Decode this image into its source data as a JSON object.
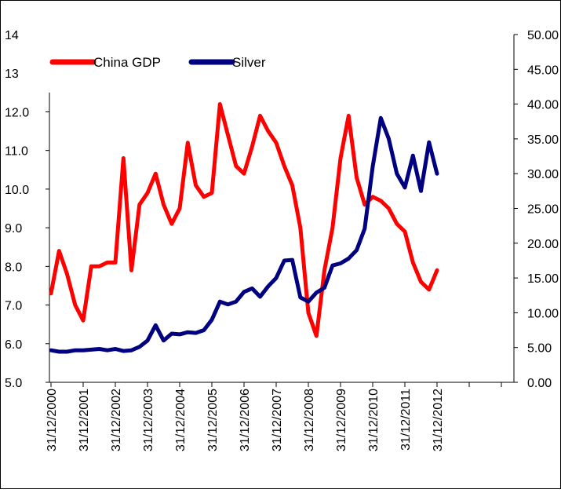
{
  "chart_data": {
    "type": "line",
    "title": "",
    "xlabel": "",
    "categories": [
      "31/12/2000",
      "31/12/2001",
      "31/12/2002",
      "31/12/2003",
      "31/12/2004",
      "31/12/2005",
      "31/12/2006",
      "31/12/2007",
      "31/12/2008",
      "31/12/2009",
      "31/12/2010",
      "31/12/2011",
      "31/12/2012"
    ],
    "y_left": {
      "ticks": [
        "5.0",
        "6.0",
        "7.0",
        "8.0",
        "9.0",
        "10.0",
        "11.0",
        "12.0",
        "13",
        "14"
      ],
      "ylim": [
        5,
        14
      ]
    },
    "y_right": {
      "ticks": [
        "0.00",
        "5.00",
        "10.00",
        "15.00",
        "20.00",
        "25.00",
        "30.00",
        "35.00",
        "40.00",
        "45.00",
        "50.00"
      ],
      "ylim": [
        0,
        50
      ]
    },
    "legend": {
      "placement": "top-left",
      "entries": [
        {
          "label": "China GDP",
          "color": "#ff0000"
        },
        {
          "label": "Silver",
          "color": "#000080"
        }
      ]
    },
    "series": [
      {
        "name": "China GDP",
        "axis": "left",
        "color": "#ff0000",
        "x": [
          2000.0,
          2000.25,
          2000.5,
          2000.75,
          2001.0,
          2001.25,
          2001.5,
          2001.75,
          2002.0,
          2002.25,
          2002.5,
          2002.75,
          2003.0,
          2003.25,
          2003.5,
          2003.75,
          2004.0,
          2004.25,
          2004.5,
          2004.75,
          2005.0,
          2005.25,
          2005.5,
          2005.75,
          2006.0,
          2006.25,
          2006.5,
          2006.75,
          2007.0,
          2007.25,
          2007.5,
          2007.75,
          2008.0,
          2008.25,
          2008.5,
          2008.75,
          2009.0,
          2009.25,
          2009.5,
          2009.75,
          2010.0,
          2010.25,
          2010.5,
          2010.75,
          2011.0,
          2011.25,
          2011.5,
          2011.75,
          2012.0
        ],
        "values": [
          7.3,
          8.4,
          7.8,
          7.0,
          6.6,
          8.0,
          8.0,
          8.1,
          8.1,
          10.8,
          7.9,
          9.6,
          9.9,
          10.4,
          9.6,
          9.1,
          9.5,
          11.2,
          10.1,
          9.8,
          9.9,
          12.2,
          11.4,
          10.6,
          10.4,
          11.1,
          11.9,
          11.5,
          11.2,
          10.6,
          10.1,
          9.0,
          6.8,
          6.2,
          7.9,
          9.0,
          10.8,
          11.9,
          10.3,
          9.6,
          9.8,
          9.7,
          9.5,
          9.1,
          8.9,
          8.1,
          7.6,
          7.4,
          7.9
        ]
      },
      {
        "name": "Silver",
        "axis": "right",
        "color": "#000080",
        "x": [
          2000.0,
          2000.25,
          2000.5,
          2000.75,
          2001.0,
          2001.25,
          2001.5,
          2001.75,
          2002.0,
          2002.25,
          2002.5,
          2002.75,
          2003.0,
          2003.25,
          2003.5,
          2003.75,
          2004.0,
          2004.25,
          2004.5,
          2004.75,
          2005.0,
          2005.25,
          2005.5,
          2005.75,
          2006.0,
          2006.25,
          2006.5,
          2006.75,
          2007.0,
          2007.25,
          2007.5,
          2007.75,
          2008.0,
          2008.25,
          2008.5,
          2008.75,
          2009.0,
          2009.25,
          2009.5,
          2009.75,
          2010.0,
          2010.25,
          2010.5,
          2010.75,
          2011.0,
          2011.25,
          2011.5,
          2011.75,
          2012.0
        ],
        "values": [
          4.6,
          4.4,
          4.4,
          4.6,
          4.6,
          4.7,
          4.8,
          4.6,
          4.8,
          4.5,
          4.6,
          5.1,
          6.0,
          8.2,
          6.0,
          7.0,
          6.9,
          7.2,
          7.1,
          7.5,
          9.0,
          11.6,
          11.2,
          11.6,
          13.0,
          13.5,
          12.3,
          13.8,
          15.0,
          17.5,
          17.6,
          12.2,
          11.6,
          12.9,
          13.6,
          16.8,
          17.1,
          17.8,
          19.0,
          22.1,
          31.0,
          38.0,
          35.0,
          30.0,
          28.0,
          32.6,
          27.5,
          34.5,
          30.0
        ]
      }
    ]
  }
}
